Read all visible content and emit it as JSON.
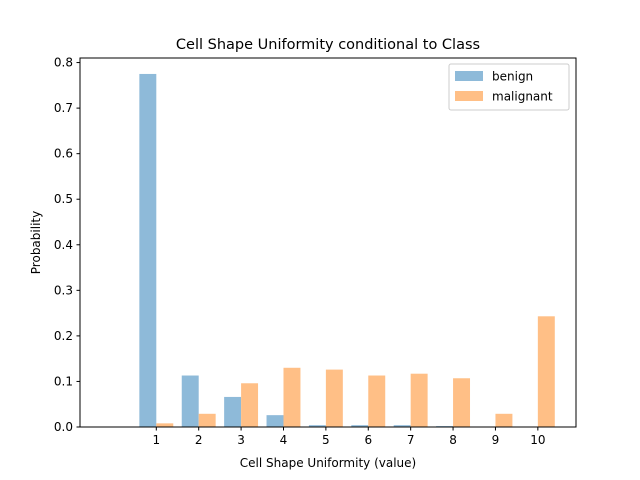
{
  "chart_data": {
    "type": "bar",
    "title": "Cell Shape Uniformity conditional to Class",
    "xlabel": "Cell Shape Uniformity (value)",
    "ylabel": "Probability",
    "categories": [
      "1",
      "2",
      "3",
      "4",
      "5",
      "6",
      "7",
      "8",
      "9",
      "10"
    ],
    "x": [
      1,
      2,
      3,
      4,
      5,
      6,
      7,
      8,
      9,
      10
    ],
    "xlim": [
      -0.8,
      10.9
    ],
    "ylim": [
      0,
      0.81
    ],
    "yticks": [
      "0.0",
      "0.1",
      "0.2",
      "0.3",
      "0.4",
      "0.5",
      "0.6",
      "0.7",
      "0.8"
    ],
    "series": [
      {
        "name": "benign",
        "color": "#8ebad9",
        "values": [
          0.775,
          0.113,
          0.066,
          0.026,
          0.004,
          0.004,
          0.004,
          0.002,
          0.0,
          0.0
        ]
      },
      {
        "name": "malignant",
        "color": "#ffbf86",
        "values": [
          0.008,
          0.029,
          0.096,
          0.13,
          0.126,
          0.113,
          0.117,
          0.107,
          0.029,
          0.243
        ]
      }
    ],
    "grid": false,
    "legend": "top-right"
  }
}
